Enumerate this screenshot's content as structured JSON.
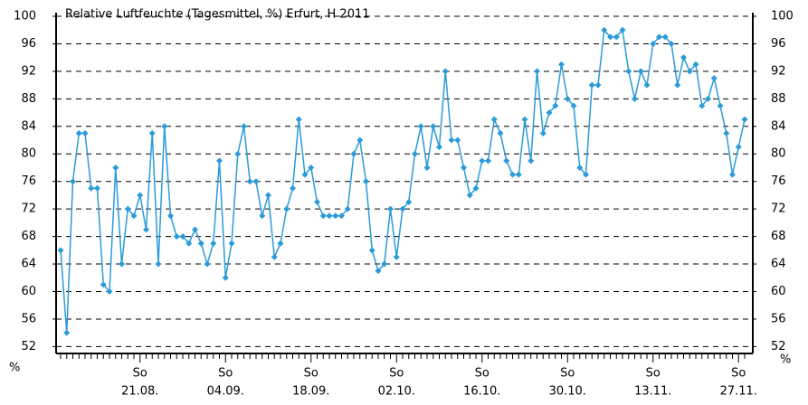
{
  "chart_data": {
    "type": "line",
    "title": "Relative Luftfeuchte (Tagesmittel, %) Erfurt, H 2011",
    "y_unit_label": "%",
    "weekday_label": "So",
    "categories": [
      null,
      null,
      null,
      null,
      null,
      null,
      null,
      null,
      null,
      null,
      null,
      null,
      null,
      "21.08.",
      null,
      null,
      null,
      null,
      null,
      null,
      null,
      null,
      null,
      null,
      null,
      null,
      null,
      "04.09.",
      null,
      null,
      null,
      null,
      null,
      null,
      null,
      null,
      null,
      null,
      null,
      null,
      null,
      "18.09.",
      null,
      null,
      null,
      null,
      null,
      null,
      null,
      null,
      null,
      null,
      null,
      null,
      null,
      "02.10.",
      null,
      null,
      null,
      null,
      null,
      null,
      null,
      null,
      null,
      null,
      null,
      null,
      null,
      "16.10.",
      null,
      null,
      null,
      null,
      null,
      null,
      null,
      null,
      null,
      null,
      null,
      null,
      null,
      "30.10.",
      null,
      null,
      null,
      null,
      null,
      null,
      null,
      null,
      null,
      null,
      null,
      null,
      null,
      "13.11.",
      null,
      null,
      null,
      null,
      null,
      null,
      null,
      null,
      null,
      null,
      null,
      null,
      null,
      "27.11.",
      null
    ],
    "series": [
      {
        "name": "Relative Luftfeuchte",
        "color": "#2b9bd9",
        "values": [
          66,
          54,
          76,
          83,
          83,
          75,
          75,
          61,
          60,
          78,
          64,
          72,
          71,
          74,
          69,
          83,
          64,
          84,
          71,
          68,
          68,
          67,
          69,
          67,
          64,
          67,
          79,
          62,
          67,
          80,
          84,
          76,
          76,
          71,
          74,
          65,
          67,
          72,
          75,
          85,
          77,
          78,
          73,
          71,
          71,
          71,
          71,
          72,
          80,
          82,
          76,
          66,
          63,
          64,
          72,
          65,
          72,
          73,
          80,
          84,
          78,
          84,
          81,
          92,
          82,
          82,
          78,
          74,
          75,
          79,
          79,
          85,
          83,
          79,
          77,
          77,
          85,
          79,
          92,
          83,
          86,
          87,
          93,
          88,
          87,
          78,
          77,
          90,
          90,
          98,
          97,
          97,
          98,
          92,
          88,
          92,
          90,
          96,
          97,
          97,
          96,
          90,
          94,
          92,
          93,
          87,
          88,
          91,
          87,
          83,
          77,
          81,
          85
        ]
      }
    ],
    "ylim": [
      51,
      100
    ],
    "yticks": [
      52,
      56,
      60,
      64,
      68,
      72,
      76,
      80,
      84,
      88,
      92,
      96,
      100
    ],
    "grid": true
  }
}
